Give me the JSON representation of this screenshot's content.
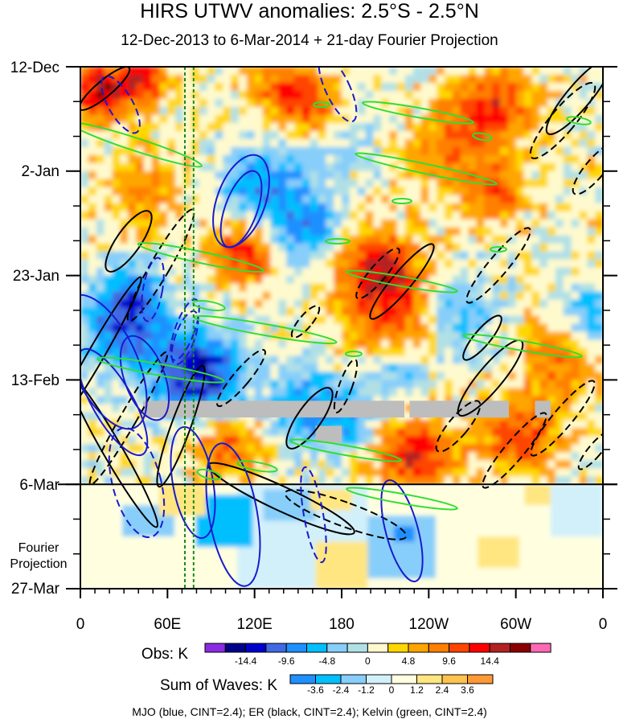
{
  "chart_data": {
    "type": "heatmap",
    "title": "HIRS UTWV anomalies: 2.5°S - 2.5°N",
    "subtitle": "12-Dec-2013 to 6-Mar-2014 + 21-day Fourier Projection",
    "x_ticks": [
      "0",
      "60E",
      "120E",
      "180",
      "120W",
      "60W",
      "0"
    ],
    "x_range_degrees_east": [
      0,
      360
    ],
    "y_ticks": [
      "12-Dec",
      "2-Jan",
      "23-Jan",
      "13-Feb",
      "6-Mar",
      "27-Mar"
    ],
    "y_range_days_since_12_Dec_2013": [
      0,
      105
    ],
    "observation_end_day": 84,
    "projection_label_line1": "Fourier",
    "projection_label_line2": "Projection",
    "obs_colorbar": {
      "label": "Obs: K",
      "levels": [
        "-14.4",
        "-9.6",
        "-4.8",
        "0",
        "4.8",
        "9.6",
        "14.4"
      ],
      "colors": [
        "#8a2be2",
        "#00008b",
        "#0000cd",
        "#4169e1",
        "#1e90ff",
        "#00bfff",
        "#87cefa",
        "#b0e0e6",
        "#fffacd",
        "#ffd700",
        "#ffa500",
        "#ff7f00",
        "#ff4500",
        "#ff0000",
        "#b22222",
        "#8b0000",
        "#ff69b4"
      ]
    },
    "waves_colorbar": {
      "label": "Sum of Waves: K",
      "levels": [
        "-3.6",
        "-2.4",
        "-1.2",
        "0",
        "1.2",
        "2.4",
        "3.6"
      ],
      "colors": [
        "#1e90ff",
        "#00bfff",
        "#87cefa",
        "#d2f0fa",
        "#ffffe0",
        "#ffe680",
        "#ffc34d",
        "#ff9933"
      ]
    },
    "contour_legend": "MJO (blue, CINT=2.4); ER (black, CINT=2.4); Kelvin (green, CINT=2.4)",
    "mjo_reference_lines_degrees_east": [
      72,
      78
    ]
  }
}
